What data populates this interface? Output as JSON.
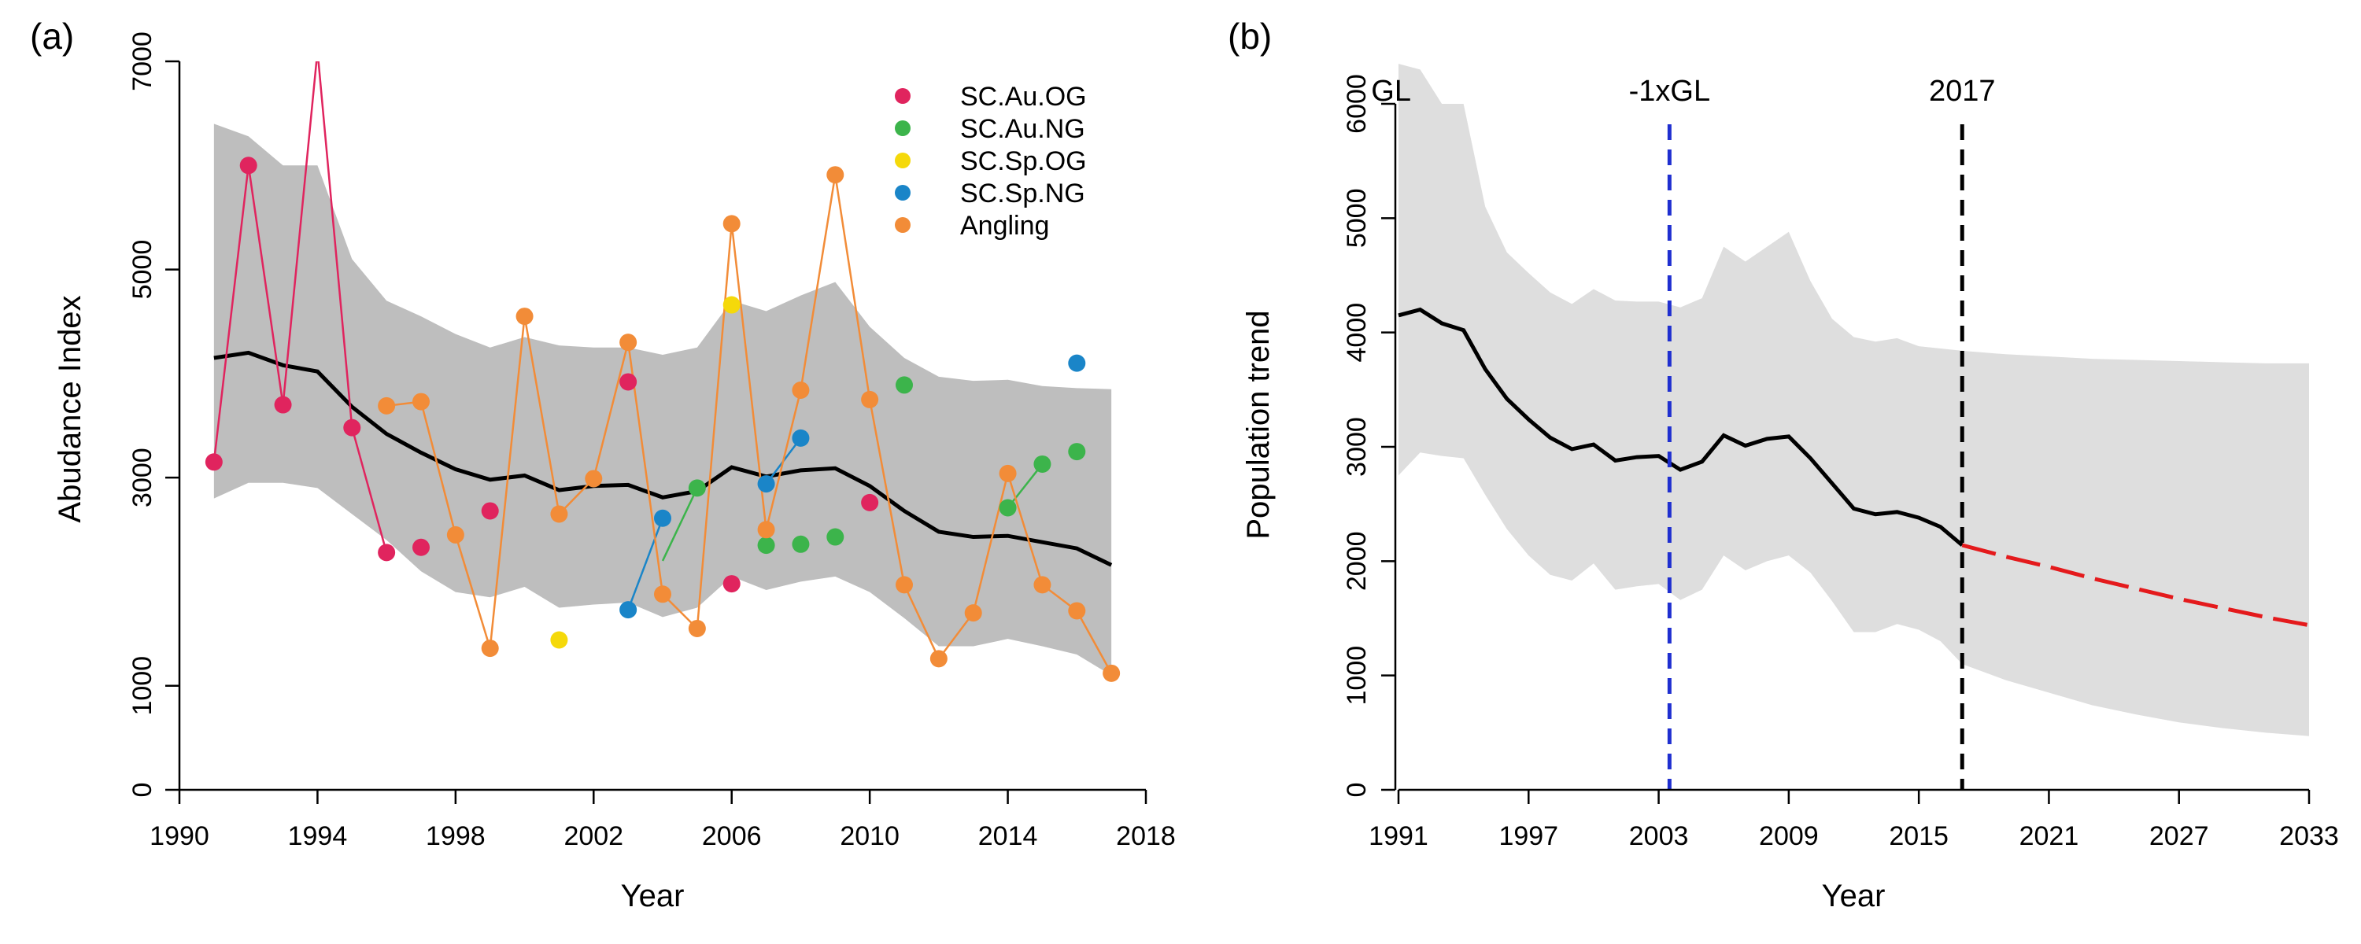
{
  "panel_a": {
    "label": "(a)",
    "ylabel": "Abudance Index",
    "xlabel": "Year",
    "legend": [
      {
        "name": "SC.Au.OG",
        "color": "#e0245e"
      },
      {
        "name": "SC.Au.NG",
        "color": "#3cb44b"
      },
      {
        "name": "SC.Sp.OG",
        "color": "#f5d90a"
      },
      {
        "name": "SC.Sp.NG",
        "color": "#1a85c8"
      },
      {
        "name": "Angling",
        "color": "#f28c38"
      }
    ]
  },
  "panel_b": {
    "label": "(b)",
    "ylabel": "Population trend",
    "xlabel": "Year",
    "annotations": [
      {
        "text": "GL",
        "x": 1991
      },
      {
        "text": "-1xGL",
        "x": 2003.5
      },
      {
        "text": "2017",
        "x": 2017
      }
    ]
  },
  "chart_data": [
    {
      "type": "line",
      "xlim": [
        1990,
        2018
      ],
      "ylim": [
        0,
        7000
      ],
      "xticks": [
        1990,
        1994,
        1998,
        2002,
        2006,
        2010,
        2014,
        2018
      ],
      "xtick_labels": [
        "1990",
        "1994",
        "1998",
        "2002",
        "2006",
        "2010",
        "2014",
        "2018"
      ],
      "yticks": [
        0,
        1000,
        3000,
        5000,
        7000
      ],
      "ytick_labels": [
        "0",
        "1000",
        "3000",
        "5000",
        "7000"
      ],
      "grid": false,
      "legend_position": "top-right",
      "band": {
        "x": [
          1991,
          1992,
          1993,
          1994,
          1995,
          1996,
          1997,
          1998,
          1999,
          2000,
          2001,
          2002,
          2003,
          2004,
          2005,
          2006,
          2007,
          2008,
          2009,
          2010,
          2011,
          2012,
          2013,
          2014,
          2015,
          2016,
          2017
        ],
        "upper": [
          6400,
          6280,
          6000,
          6000,
          5100,
          4700,
          4550,
          4380,
          4250,
          4350,
          4270,
          4250,
          4250,
          4180,
          4250,
          4700,
          4600,
          4750,
          4880,
          4450,
          4150,
          3970,
          3930,
          3940,
          3880,
          3860,
          3850
        ],
        "lower": [
          2800,
          2950,
          2950,
          2900,
          2650,
          2400,
          2100,
          1900,
          1850,
          1950,
          1750,
          1780,
          1800,
          1660,
          1750,
          2050,
          1920,
          2000,
          2050,
          1900,
          1650,
          1380,
          1380,
          1450,
          1380,
          1300,
          1100
        ]
      },
      "trend": {
        "x": [
          1991,
          1992,
          1993,
          1994,
          1995,
          1996,
          1997,
          1998,
          1999,
          2000,
          2001,
          2002,
          2003,
          2004,
          2005,
          2006,
          2007,
          2008,
          2009,
          2010,
          2011,
          2012,
          2013,
          2014,
          2015,
          2016,
          2017
        ],
        "y": [
          4150,
          4200,
          4080,
          4020,
          3680,
          3420,
          3240,
          3080,
          2980,
          3020,
          2880,
          2920,
          2930,
          2810,
          2870,
          3100,
          3010,
          3070,
          3090,
          2920,
          2680,
          2480,
          2430,
          2440,
          2380,
          2320,
          2160
        ]
      },
      "series": [
        {
          "name": "SC.Au.OG",
          "color": "#e0245e",
          "points": [
            [
              1991,
              3150
            ],
            [
              1992,
              6000
            ],
            [
              1993,
              3700
            ],
            [
              1994,
              7100
            ],
            [
              1995,
              3480
            ],
            [
              1996,
              2280
            ],
            [
              1997,
              2330
            ],
            [
              1999,
              2680
            ],
            [
              2003,
              3920
            ],
            [
              2006,
              1980
            ],
            [
              2010,
              2760
            ]
          ],
          "segments": [
            [
              [
                1991,
                3150
              ],
              [
                1992,
                6000
              ],
              [
                1993,
                3700
              ],
              [
                1994,
                7100
              ],
              [
                1995,
                3480
              ],
              [
                1996,
                2280
              ]
            ]
          ]
        },
        {
          "name": "SC.Au.NG",
          "color": "#3cb44b",
          "points": [
            [
              2005,
              2900
            ],
            [
              2007,
              2350
            ],
            [
              2008,
              2360
            ],
            [
              2009,
              2430
            ],
            [
              2011,
              3890
            ],
            [
              2014,
              2710
            ],
            [
              2015,
              3130
            ],
            [
              2016,
              3250
            ]
          ],
          "segments": [
            [
              [
                2004,
                2200
              ],
              [
                2005,
                2900
              ]
            ],
            [
              [
                2014,
                2710
              ],
              [
                2015,
                3130
              ]
            ]
          ]
        },
        {
          "name": "SC.Sp.OG",
          "color": "#f5d90a",
          "points": [
            [
              2001,
              1440
            ],
            [
              2006,
              4660
            ]
          ],
          "segments": []
        },
        {
          "name": "SC.Sp.NG",
          "color": "#1a85c8",
          "points": [
            [
              2003,
              1730
            ],
            [
              2004,
              2610
            ],
            [
              2007,
              2940
            ],
            [
              2008,
              3380
            ],
            [
              2016,
              4100
            ]
          ],
          "segments": [
            [
              [
                2003,
                1730
              ],
              [
                2004,
                2610
              ]
            ],
            [
              [
                2007,
                2940
              ],
              [
                2008,
                3380
              ]
            ]
          ]
        },
        {
          "name": "Angling",
          "color": "#f28c38",
          "points": [
            [
              1996,
              3690
            ],
            [
              1997,
              3730
            ],
            [
              1998,
              2450
            ],
            [
              1999,
              1360
            ],
            [
              2000,
              4550
            ],
            [
              2001,
              2650
            ],
            [
              2002,
              2990
            ],
            [
              2003,
              4300
            ],
            [
              2004,
              1880
            ],
            [
              2005,
              1550
            ],
            [
              2006,
              5440
            ],
            [
              2007,
              2500
            ],
            [
              2008,
              3840
            ],
            [
              2009,
              5910
            ],
            [
              2010,
              3750
            ],
            [
              2011,
              1970
            ],
            [
              2012,
              1260
            ],
            [
              2013,
              1700
            ],
            [
              2014,
              3040
            ],
            [
              2015,
              1970
            ],
            [
              2016,
              1720
            ],
            [
              2017,
              1120
            ]
          ],
          "segments": [
            [
              [
                1996,
                3690
              ],
              [
                1997,
                3730
              ],
              [
                1998,
                2450
              ],
              [
                1999,
                1360
              ],
              [
                2000,
                4550
              ],
              [
                2001,
                2650
              ],
              [
                2002,
                2990
              ],
              [
                2003,
                4300
              ],
              [
                2004,
                1880
              ],
              [
                2005,
                1550
              ],
              [
                2006,
                5440
              ],
              [
                2007,
                2500
              ],
              [
                2008,
                3840
              ],
              [
                2009,
                5910
              ],
              [
                2010,
                3750
              ],
              [
                2011,
                1970
              ],
              [
                2012,
                1260
              ],
              [
                2013,
                1700
              ],
              [
                2014,
                3040
              ],
              [
                2015,
                1970
              ],
              [
                2016,
                1720
              ],
              [
                2017,
                1120
              ]
            ]
          ]
        }
      ]
    },
    {
      "type": "line",
      "xlim": [
        1991,
        2033
      ],
      "ylim": [
        0,
        6000
      ],
      "xticks": [
        1991,
        1997,
        2003,
        2009,
        2015,
        2021,
        2027,
        2033
      ],
      "xtick_labels": [
        "1991",
        "1997",
        "2003",
        "2009",
        "2015",
        "2021",
        "2027",
        "2033"
      ],
      "yticks": [
        0,
        1000,
        2000,
        3000,
        4000,
        5000,
        6000
      ],
      "ytick_labels": [
        "0",
        "1000",
        "2000",
        "3000",
        "4000",
        "5000",
        "6000"
      ],
      "grid": false,
      "vlines": [
        {
          "x": 2003.5,
          "color": "#1f2fd0",
          "style": "dashed"
        },
        {
          "x": 2017,
          "color": "#000000",
          "style": "dashed"
        }
      ],
      "band": {
        "x": [
          1991,
          1992,
          1993,
          1994,
          1995,
          1996,
          1997,
          1998,
          1999,
          2000,
          2001,
          2002,
          2003,
          2004,
          2005,
          2006,
          2007,
          2008,
          2009,
          2010,
          2011,
          2012,
          2013,
          2014,
          2015,
          2016,
          2017,
          2019,
          2021,
          2023,
          2025,
          2027,
          2029,
          2031,
          2033
        ],
        "upper": [
          6350,
          6300,
          6000,
          6000,
          5100,
          4700,
          4520,
          4350,
          4250,
          4380,
          4280,
          4270,
          4270,
          4220,
          4300,
          4750,
          4620,
          4750,
          4880,
          4450,
          4120,
          3960,
          3920,
          3950,
          3880,
          3860,
          3840,
          3810,
          3790,
          3770,
          3760,
          3750,
          3740,
          3730,
          3730
        ],
        "lower": [
          2750,
          2950,
          2920,
          2900,
          2580,
          2280,
          2050,
          1880,
          1830,
          1980,
          1750,
          1780,
          1800,
          1660,
          1750,
          2050,
          1920,
          2000,
          2050,
          1900,
          1650,
          1380,
          1380,
          1450,
          1400,
          1300,
          1100,
          960,
          850,
          740,
          660,
          590,
          540,
          500,
          470
        ]
      },
      "series": [
        {
          "name": "",
          "color": "#000000",
          "style": "solid",
          "x": [
            1991,
            1992,
            1993,
            1994,
            1995,
            1996,
            1997,
            1998,
            1999,
            2000,
            2001,
            2002,
            2003,
            2004,
            2005,
            2006,
            2007,
            2008,
            2009,
            2010,
            2011,
            2012,
            2013,
            2014,
            2015,
            2016,
            2017
          ],
          "y": [
            4150,
            4200,
            4080,
            4020,
            3680,
            3420,
            3240,
            3080,
            2980,
            3020,
            2880,
            2910,
            2920,
            2800,
            2870,
            3100,
            3010,
            3070,
            3090,
            2900,
            2680,
            2460,
            2410,
            2430,
            2380,
            2300,
            2140
          ]
        },
        {
          "name": "",
          "color": "#e41a1c",
          "style": "dashed",
          "x": [
            2017,
            2019,
            2021,
            2023,
            2025,
            2027,
            2029,
            2031,
            2033
          ],
          "y": [
            2140,
            2040,
            1950,
            1850,
            1760,
            1670,
            1590,
            1510,
            1440
          ]
        }
      ]
    }
  ]
}
